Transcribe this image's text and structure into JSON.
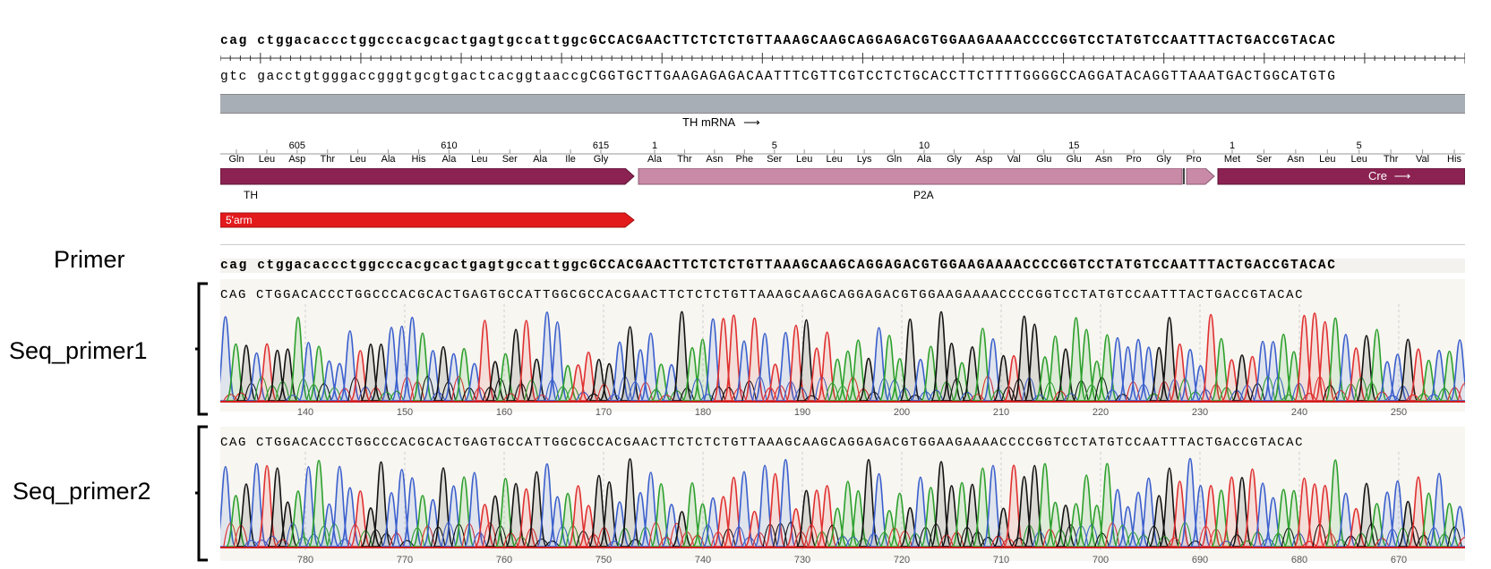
{
  "labels": {
    "primer": "Primer",
    "seq_primer1": "Seq_primer1",
    "seq_primer2": "Seq_primer2"
  },
  "sequence": {
    "top_prefix": "cag ",
    "top_lower": "ctggacaccctggcccacgcactgagtgccattggc",
    "top_upper": "GCCACGAACTTCTCTCTGTTAAAGCAAGCAGGAGACGTGGAAGAAAACCCCGGTCCTATGTCCAATTTACTGACCGTACAC",
    "bottom_prefix": "gtc ",
    "bottom_lower": "gacctgtgggaccgggtgcgtgactcacggtaaccg",
    "bottom_upper": "CGGTGCTTGAAGAGAGACAATTTCGTTCGTCCTCTGCACCTTCTTTTGGGGCCAGGATACAGGTTAAATGACTGGCATGTG"
  },
  "features": {
    "mrna_label": "TH mRNA",
    "th_label": "TH",
    "p2a_label": "P2A",
    "cre_label": "Cre",
    "arm_label": "5'arm"
  },
  "translation": {
    "th_aa": [
      "Gln",
      "Leu",
      "Asp",
      "Thr",
      "Leu",
      "Ala",
      "His",
      "Ala",
      "Leu",
      "Ser",
      "Ala",
      "Ile",
      "Gly"
    ],
    "th_nums": [
      "605",
      "610",
      "615"
    ],
    "p2a_aa": [
      "Ala",
      "Thr",
      "Asn",
      "Phe",
      "Ser",
      "Leu",
      "Leu",
      "Lys",
      "Gln",
      "Ala",
      "Gly",
      "Asp",
      "Val",
      "Glu",
      "Glu",
      "Asn",
      "Pro",
      "Gly",
      "Pro"
    ],
    "p2a_nums": [
      "1",
      "5",
      "10",
      "15"
    ],
    "cre_aa": [
      "Met",
      "Ser",
      "Asn",
      "Leu",
      "Leu",
      "Thr",
      "Val",
      "His"
    ],
    "cre_nums": [
      "1",
      "5"
    ]
  },
  "primer_seq": {
    "prefix": "cag ",
    "lower": "ctggacaccctggcccacgcactgagtgccattggc",
    "upper": "GCCACGAACTTCTCTCTGTTAAAGCAAGCAGGAGACGTGGAAGAAAACCCCGGTCCTATGTCCAATTTACTGACCGTACAC"
  },
  "read1": {
    "bases": "CAG CTGGACACCCTGGCCCACGCACTGAGTGCCATTGGCGCCACGAACTTCTCTCTGTTAAAGCAAGCAGGAGACGTGGAAGAAAACCCCGGTCCTATGTCCAATTTACTGACCGTACAC",
    "ticks": [
      "140",
      "150",
      "160",
      "170",
      "180",
      "190",
      "200",
      "210",
      "220",
      "230",
      "240",
      "250"
    ]
  },
  "read2": {
    "bases": "CAG CTGGACACCCTGGCCCACGCACTGAGTGCCATTGGCGCCACGAACTTCTCTCTGTTAAAGCAAGCAGGAGACGTGGAAGAAAACCCCGGTCCTATGTCCAATTTACTGACCGTACAC",
    "ticks": [
      "780",
      "770",
      "760",
      "750",
      "740",
      "730",
      "720",
      "710",
      "700",
      "690",
      "680",
      "670"
    ]
  },
  "colors": {
    "A": "#2ca02c",
    "C": "#3a5fcd",
    "G": "#111111",
    "T": "#e03030",
    "th_bar": "#8b2252",
    "p2a_bar": "#c98aa8",
    "cre_bar": "#8b2252",
    "arm_bar": "#e31a1c",
    "gray_bar": "#a8aeb6"
  }
}
